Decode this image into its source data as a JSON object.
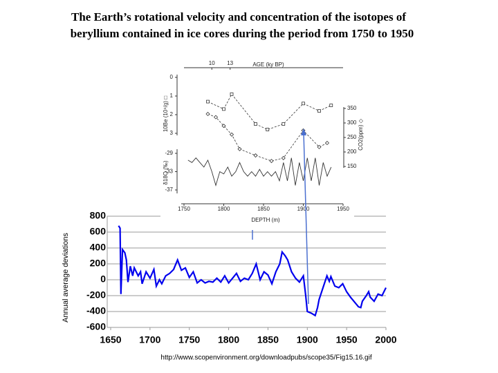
{
  "header": {
    "title_line1": "The Earth’s rotational velocity and concentration of the isotopes of",
    "title_line2": "beryllium contained in ice cores during the period from 1750 to 1950"
  },
  "source": "http://www.scopenvironment.org/downloadpubs/scope35/Fig15.16.gif",
  "chart_data": [
    {
      "type": "line",
      "ylabel": "Annual average deviations",
      "xlim": [
        1650,
        2000
      ],
      "xticks": [
        1650,
        1700,
        1750,
        1800,
        1850,
        1900,
        1950,
        2000
      ],
      "ylim": [
        -600,
        800
      ],
      "yticks": [
        -600,
        -400,
        -200,
        0,
        200,
        400,
        600,
        800
      ],
      "grid": true,
      "series": [
        {
          "color": "#0000ee",
          "x": [
            1660,
            1662,
            1663,
            1665,
            1668,
            1670,
            1672,
            1675,
            1678,
            1680,
            1685,
            1688,
            1690,
            1695,
            1700,
            1705,
            1708,
            1712,
            1715,
            1720,
            1725,
            1730,
            1735,
            1740,
            1745,
            1750,
            1755,
            1760,
            1765,
            1770,
            1775,
            1780,
            1785,
            1790,
            1795,
            1800,
            1805,
            1810,
            1815,
            1820,
            1825,
            1830,
            1835,
            1840,
            1845,
            1850,
            1855,
            1860,
            1865,
            1868,
            1872,
            1875,
            1880,
            1885,
            1890,
            1895,
            1898,
            1900,
            1905,
            1910,
            1913,
            1915,
            1920,
            1925,
            1928,
            1930,
            1935,
            1940,
            1945,
            1950,
            1955,
            1960,
            1965,
            1968,
            1970,
            1975,
            1978,
            1980,
            1985,
            1990,
            1995,
            2000
          ],
          "values": [
            680,
            650,
            -180,
            380,
            340,
            250,
            -30,
            170,
            50,
            150,
            50,
            100,
            -50,
            100,
            20,
            130,
            -80,
            0,
            -50,
            50,
            80,
            130,
            250,
            120,
            150,
            30,
            100,
            -40,
            0,
            -40,
            -20,
            -30,
            20,
            -30,
            50,
            -40,
            20,
            80,
            -20,
            20,
            0,
            80,
            200,
            0,
            100,
            60,
            -50,
            100,
            200,
            350,
            300,
            250,
            100,
            20,
            -30,
            50,
            -200,
            -400,
            -420,
            -450,
            -350,
            -250,
            -100,
            50,
            -20,
            40,
            -80,
            -100,
            -50,
            -150,
            -220,
            -280,
            -340,
            -350,
            -270,
            -200,
            -150,
            -220,
            -270,
            -180,
            -200,
            -100
          ]
        }
      ]
    },
    {
      "type": "line",
      "x2label": "AGE (ky BP)",
      "xlim": [
        1750,
        1950
      ],
      "x2ticks": [
        {
          "value": 1785,
          "label": "10"
        },
        {
          "value": 1808,
          "label": "13"
        }
      ],
      "ylabel": "10Be (10⁴/g) □",
      "ylim": [
        0,
        3
      ],
      "yticks": [
        0,
        1,
        2,
        3
      ],
      "y_inverted": true,
      "y2label": "CO2(ppm) ◇",
      "y2lim": [
        150,
        350
      ],
      "y2ticks": [
        150,
        200,
        250,
        300,
        350
      ],
      "series": [
        {
          "color": "#333333",
          "marker": "square",
          "x": [
            1780,
            1800,
            1810,
            1840,
            1855,
            1875,
            1900,
            1920,
            1935
          ],
          "values": [
            1.3,
            1.7,
            0.9,
            2.5,
            2.8,
            2.5,
            1.4,
            1.8,
            1.5
          ]
        },
        {
          "color": "#333333",
          "marker": "diamond",
          "axis": "y2",
          "x": [
            1780,
            1790,
            1800,
            1810,
            1820,
            1840,
            1860,
            1875,
            1900,
            1920,
            1930
          ],
          "values": [
            331,
            320,
            290,
            260,
            210,
            188,
            169,
            179,
            274,
            217,
            231
          ]
        }
      ]
    },
    {
      "type": "line",
      "xlabel": "DEPTH (m)",
      "xlim": [
        1750,
        1950
      ],
      "xticks": [
        1750,
        1800,
        1850,
        1900,
        1950
      ],
      "ylabel": "δ18O (‰)",
      "ylim": [
        -37,
        -29
      ],
      "yticks": [
        -37,
        -33,
        -29
      ],
      "series": [
        {
          "color": "#333333",
          "x": [
            1755,
            1760,
            1765,
            1770,
            1775,
            1780,
            1785,
            1790,
            1795,
            1800,
            1805,
            1810,
            1815,
            1820,
            1825,
            1830,
            1835,
            1840,
            1845,
            1850,
            1855,
            1860,
            1865,
            1870,
            1875,
            1880,
            1885,
            1890,
            1895,
            1900,
            1905,
            1910,
            1915,
            1920,
            1925,
            1930,
            1935
          ],
          "values": [
            -30.5,
            -31,
            -30,
            -31,
            -32,
            -30.5,
            -33,
            -36,
            -33,
            -33.5,
            -32,
            -34,
            -33,
            -31,
            -33,
            -34,
            -33,
            -34,
            -32.5,
            -34,
            -33,
            -34,
            -33,
            -35,
            -31,
            -35,
            -30,
            -36,
            -31,
            -35,
            -30,
            -35,
            -30,
            -36,
            -31,
            -34,
            -32
          ]
        }
      ]
    }
  ]
}
